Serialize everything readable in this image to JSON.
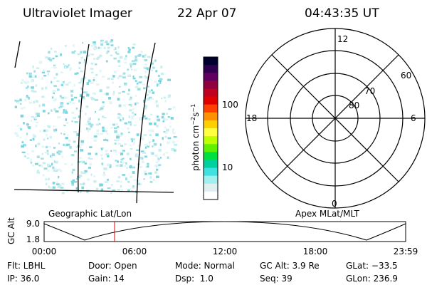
{
  "header": {
    "instrument": "Ultraviolet Imager",
    "date": "22 Apr 07",
    "time": "04:43:35 UT"
  },
  "colorbar": {
    "label": [
      "photon cm",
      "−2",
      "s",
      "−1"
    ],
    "ticks": [
      "100",
      "10"
    ]
  },
  "polar": {
    "mlt": [
      "12",
      "18",
      "6",
      "0"
    ],
    "mlat": [
      "60",
      "70",
      "80"
    ]
  },
  "panel_labels": {
    "left": "Geographic Lat/Lon",
    "right": "Apex MLat/MLT"
  },
  "orbit": {
    "ylabel": "GC Alt",
    "yticks": [
      "9.0",
      "1.8"
    ],
    "xticks": [
      "00:00",
      "06:00",
      "12:00",
      "18:00",
      "23:59"
    ]
  },
  "status": {
    "rows": [
      [
        "Flt: LBHL",
        "Door: Open",
        "Mode: Normal",
        "GC Alt: 3.9 Re",
        "GLat: −33.5"
      ],
      [
        "IP: 36.0",
        "Gain: 14",
        "Dsp:  1.0",
        "Seq: 39",
        "GLon: 236.9"
      ]
    ]
  }
}
